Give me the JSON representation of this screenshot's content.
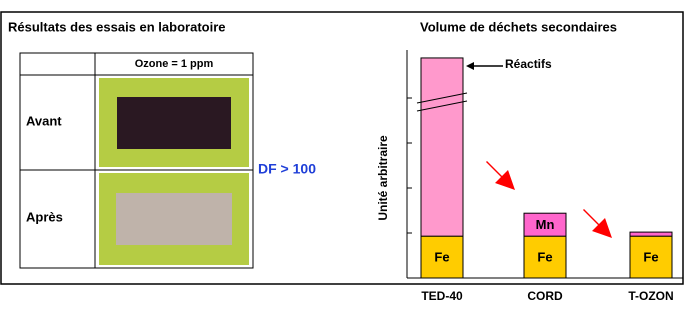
{
  "left_panel": {
    "title": "Résultats des essais en laboratoire",
    "table": {
      "header": "Ozone = 1 ppm",
      "rows": [
        "Avant",
        "Après"
      ]
    },
    "annotation": "DF > 100"
  },
  "chart_data": {
    "type": "stacked-bar",
    "title": "Volume de déchets secondaires",
    "y_label": "Unité arbitraire",
    "categories": [
      "TED-40",
      "CORD",
      "T-OZON"
    ],
    "series": [
      {
        "name": "Fe",
        "color": "#ffcc00",
        "values": [
          0.93,
          0.93,
          0.93
        ]
      },
      {
        "name": "Mn",
        "color": "#ff66cc",
        "values": [
          null,
          0.51,
          0.09
        ]
      },
      {
        "name": "Réactifs",
        "color": "#ff99cc",
        "values": [
          3.96,
          null,
          null
        ]
      }
    ],
    "ylim": [
      0,
      5
    ],
    "yticks": [
      0,
      1,
      2,
      3,
      4
    ]
  }
}
